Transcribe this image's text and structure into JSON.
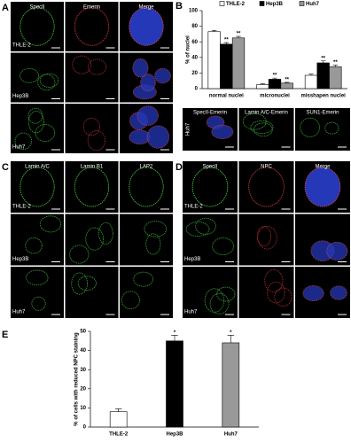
{
  "panels": [
    {
      "label": "A",
      "columns": [
        "SpecII",
        "Emerin",
        "Merge"
      ],
      "rows": [
        "THLE-2",
        "Hep3B",
        "Huh7"
      ]
    },
    {
      "label": "C",
      "columns": [
        "Lamin A/C",
        "Lamin B1",
        "LAP2"
      ],
      "rows": [
        "THLE-2",
        "Hep3B",
        "Huh7"
      ]
    },
    {
      "label": "D",
      "columns": [
        "SpecII",
        "NPC",
        "Merge"
      ],
      "rows": [
        "THLE-2",
        "Hep3B",
        "Huh7"
      ]
    }
  ],
  "inset_b": {
    "labels": [
      "SpecII-Emerin",
      "Lamin A/C-Emerin",
      "SUN1-Emerin"
    ],
    "row": "Huh7"
  },
  "chart_data": [
    {
      "type": "bar",
      "panel": "B",
      "y_label": "% of nuclei",
      "categories": [
        "normal nuclei",
        "micronuclei",
        "misshapen nuclei"
      ],
      "series": [
        {
          "name": "THLE-2",
          "color": "#ffffff",
          "values": [
            73,
            5,
            17
          ],
          "errors": [
            1.5,
            1,
            1.5
          ]
        },
        {
          "name": "Hep3B",
          "color": "#000000",
          "values": [
            57,
            12,
            33
          ],
          "errors": [
            2,
            1.5,
            2.5
          ],
          "significance": [
            "**",
            "**",
            "**"
          ]
        },
        {
          "name": "Huh7",
          "color": "#999999",
          "values": [
            65,
            7,
            28
          ],
          "errors": [
            2,
            1,
            2
          ],
          "significance": [
            "**",
            "**",
            "**"
          ]
        }
      ],
      "ylim": [
        0,
        100
      ],
      "yticks": [
        0,
        20,
        40,
        60,
        80,
        100
      ],
      "legend": "top"
    },
    {
      "type": "bar",
      "panel": "E",
      "y_label": "% of cells with reduced NPC staining",
      "categories": [
        "THLE-2",
        "Hep3B",
        "Huh7"
      ],
      "values": [
        8,
        45,
        44
      ],
      "errors": [
        1.5,
        3,
        4
      ],
      "colors": [
        "#ffffff",
        "#000000",
        "#999999"
      ],
      "significance": [
        null,
        "*",
        "*"
      ],
      "ylim": [
        0,
        50
      ],
      "yticks": [
        0,
        10,
        20,
        30,
        40,
        50
      ]
    }
  ]
}
